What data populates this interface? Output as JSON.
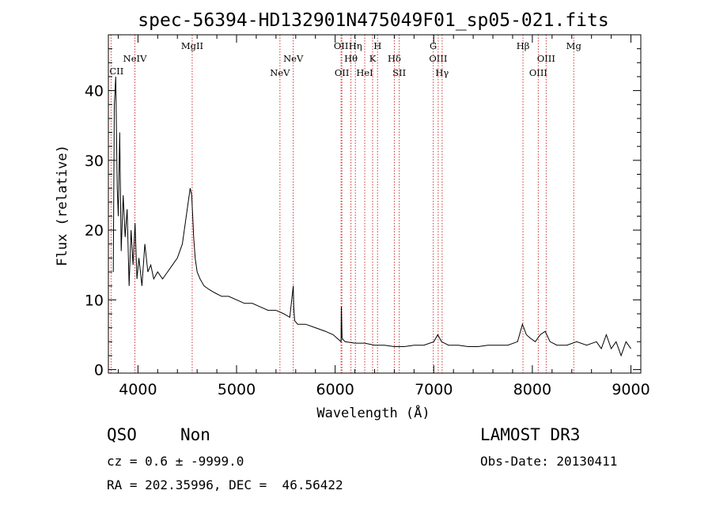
{
  "chart_data": {
    "type": "line",
    "title": "spec-56394-HD132901N475049F01_sp05-021.fits",
    "xlabel": "Wavelength (Å)",
    "ylabel": "Flux (relative)",
    "xlim": [
      3700,
      9100
    ],
    "ylim": [
      -0.5,
      48
    ],
    "xticks": [
      4000,
      5000,
      6000,
      7000,
      8000,
      9000
    ],
    "xtick_labels": [
      "4000",
      "5000",
      "6000",
      "7000",
      "8000",
      "9000"
    ],
    "yticks": [
      0,
      10,
      20,
      30,
      40
    ],
    "ytick_labels": [
      "0",
      "10",
      "20",
      "30",
      "40"
    ],
    "series": [
      {
        "name": "spectrum",
        "x": [
          3750,
          3760,
          3775,
          3790,
          3800,
          3815,
          3830,
          3850,
          3870,
          3890,
          3910,
          3930,
          3950,
          3970,
          3990,
          4010,
          4040,
          4070,
          4100,
          4130,
          4160,
          4200,
          4250,
          4300,
          4350,
          4400,
          4450,
          4480,
          4510,
          4530,
          4545,
          4555,
          4565,
          4580,
          4600,
          4630,
          4670,
          4720,
          4780,
          4850,
          4920,
          5000,
          5080,
          5160,
          5240,
          5320,
          5400,
          5480,
          5540,
          5575,
          5580,
          5590,
          5620,
          5700,
          5800,
          5900,
          5980,
          6020,
          6060,
          6063,
          6070,
          6100,
          6200,
          6300,
          6400,
          6500,
          6600,
          6700,
          6800,
          6900,
          7000,
          7040,
          7080,
          7150,
          7250,
          7350,
          7450,
          7550,
          7650,
          7750,
          7850,
          7900,
          7940,
          7980,
          8030,
          8080,
          8130,
          8180,
          8250,
          8350,
          8450,
          8550,
          8650,
          8700,
          8750,
          8800,
          8850,
          8900,
          8950,
          9000
        ],
        "y": [
          14,
          38,
          42,
          26,
          22,
          34,
          17,
          25,
          19,
          23,
          12,
          20,
          15,
          21,
          13,
          16,
          12,
          18,
          14,
          15,
          13,
          14,
          13,
          14,
          15,
          16,
          18,
          21,
          24,
          26,
          25,
          22,
          19,
          16,
          14,
          13,
          12,
          11.5,
          11,
          10.5,
          10.5,
          10,
          9.5,
          9.5,
          9,
          8.5,
          8.5,
          8,
          7.5,
          12,
          9,
          7,
          6.5,
          6.5,
          6,
          5.5,
          5,
          4.5,
          4,
          9,
          4.5,
          4,
          3.8,
          3.8,
          3.5,
          3.5,
          3.3,
          3.3,
          3.5,
          3.5,
          4,
          5,
          4,
          3.5,
          3.5,
          3.3,
          3.3,
          3.5,
          3.5,
          3.5,
          4,
          6.5,
          5,
          4.5,
          4,
          5,
          5.5,
          4,
          3.5,
          3.5,
          4,
          3.5,
          4,
          3,
          5,
          3,
          4,
          2,
          4,
          3
        ]
      }
    ],
    "emission_lines": [
      {
        "label": "CII",
        "wavelength": 3727,
        "row": 3
      },
      {
        "label": "NeIV",
        "wavelength": 3969,
        "row": 1
      },
      {
        "label": "MgII",
        "wavelength": 4550,
        "row": 0
      },
      {
        "label": "NeV",
        "wavelength": 5440,
        "row": 2
      },
      {
        "label": "NeV",
        "wavelength": 5575,
        "row": 1
      },
      {
        "label": "OII",
        "wavelength": 6060,
        "row": 0
      },
      {
        "label": "OII",
        "wavelength": 6068,
        "row": 2
      },
      {
        "label": "Hθ",
        "wavelength": 6160,
        "row": 1
      },
      {
        "label": "Hη",
        "wavelength": 6205,
        "row": 0
      },
      {
        "label": "HeI",
        "wavelength": 6300,
        "row": 2
      },
      {
        "label": "K",
        "wavelength": 6380,
        "row": 1
      },
      {
        "label": "H",
        "wavelength": 6430,
        "row": 0
      },
      {
        "label": "Hδ",
        "wavelength": 6600,
        "row": 1
      },
      {
        "label": "SII",
        "wavelength": 6650,
        "row": 2
      },
      {
        "label": "G",
        "wavelength": 6995,
        "row": 0
      },
      {
        "label": "OIII",
        "wavelength": 7045,
        "row": 1
      },
      {
        "label": "Hγ",
        "wavelength": 7085,
        "row": 2
      },
      {
        "label": "Hβ",
        "wavelength": 7905,
        "row": 0
      },
      {
        "label": "OIII",
        "wavelength": 8060,
        "row": 2
      },
      {
        "label": "OIII",
        "wavelength": 8140,
        "row": 1
      },
      {
        "label": "Mg",
        "wavelength": 8420,
        "row": 0
      }
    ],
    "line_color": "#cc3333"
  },
  "footer": {
    "class_label": "QSO",
    "subclass_label": "Non",
    "survey": "LAMOST DR3",
    "cz_text": "cz = 0.6 ± -9999.0",
    "obs_date": "Obs-Date: 20130411",
    "coords": "RA = 202.35996, DEC =  46.56422"
  }
}
